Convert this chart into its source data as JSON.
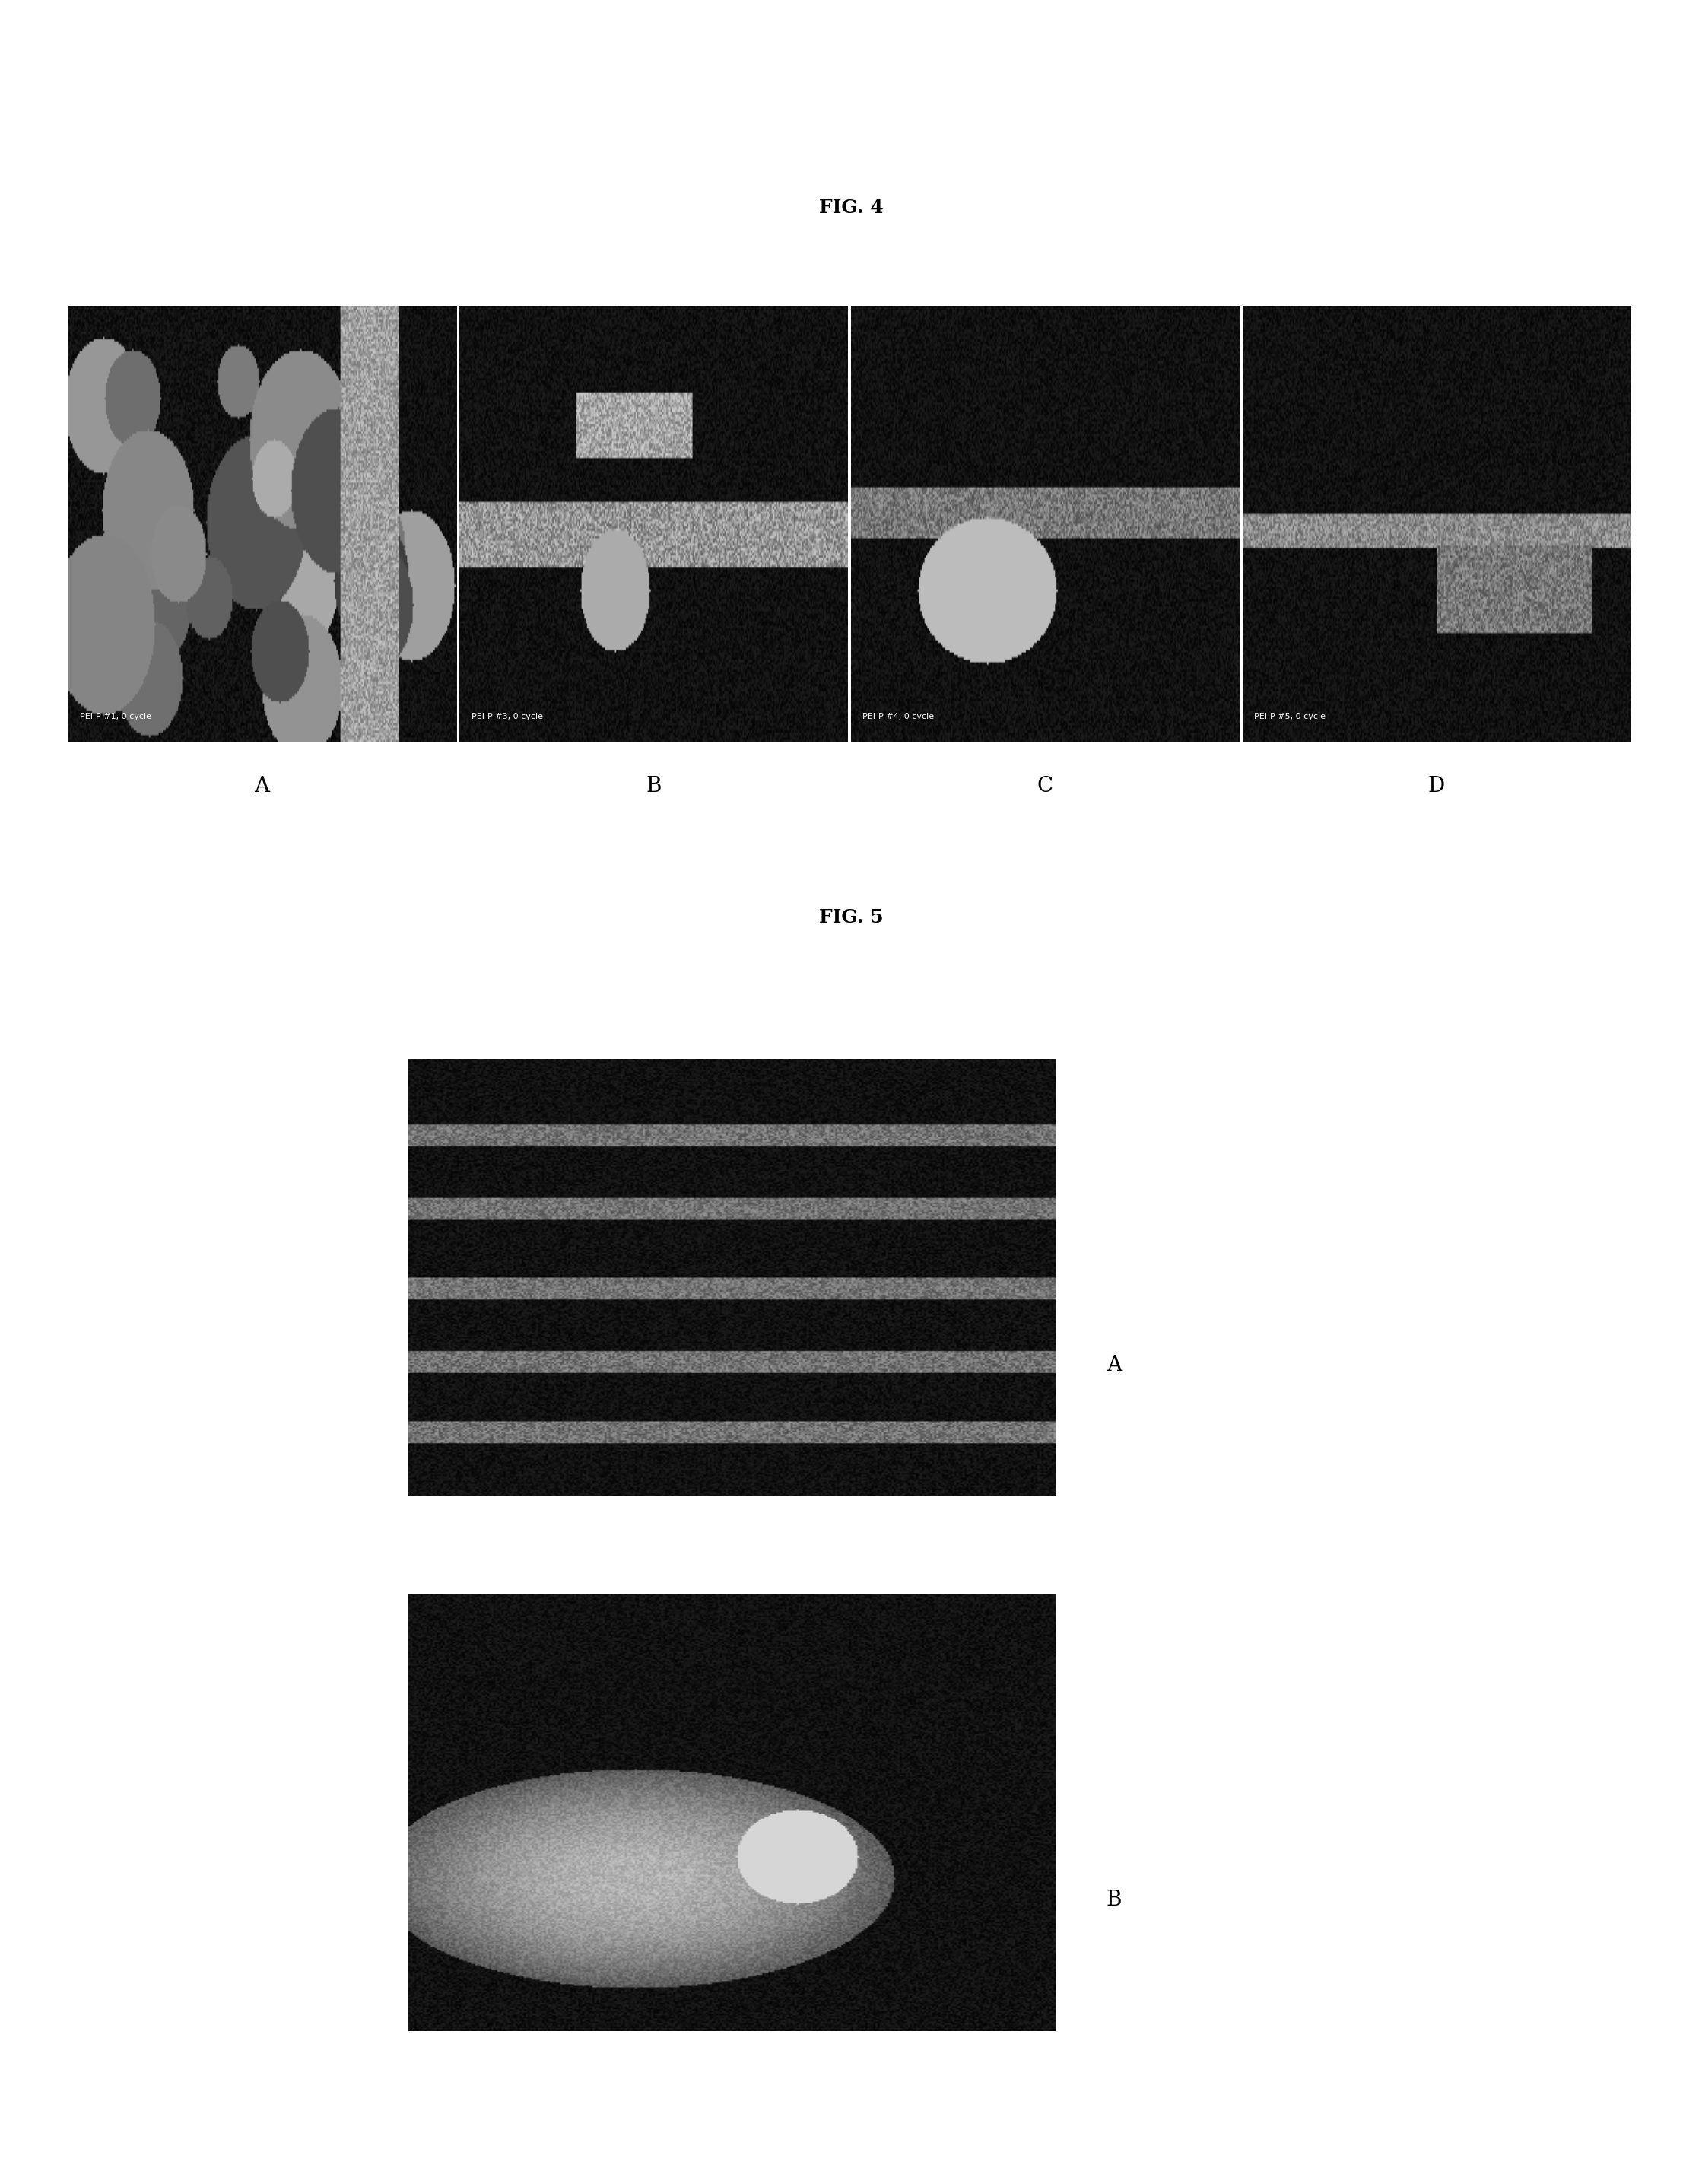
{
  "fig4_title": "FIG. 4",
  "fig5_title": "FIG. 5",
  "fig4_labels": [
    "A",
    "B",
    "C",
    "D"
  ],
  "fig4_sublabels": [
    "PEI-P #1, 0 cycle",
    "PEI-P #3, 0 cycle",
    "PEI-P #4, 0 cycle",
    "PEI-P #5, 0 cycle"
  ],
  "fig5_labels": [
    "A",
    "B"
  ],
  "background_color": "#ffffff",
  "title_fontsize": 18,
  "label_fontsize": 20,
  "sublabel_fontsize": 10
}
